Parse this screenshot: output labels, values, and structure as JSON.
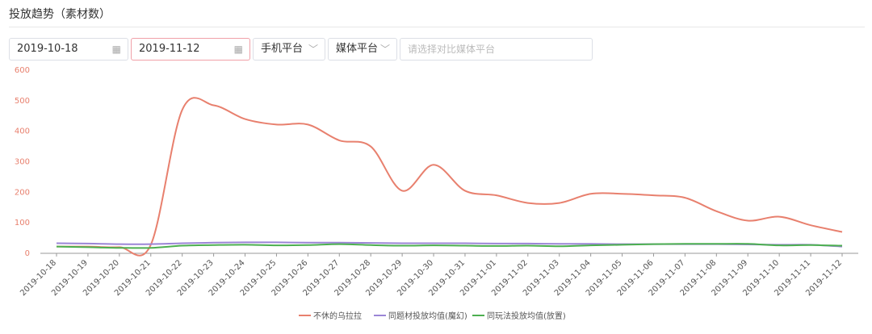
{
  "header": {
    "title": "投放趋势（素材数）"
  },
  "filters": {
    "start_date": "2019-10-18",
    "end_date": "2019-11-12",
    "platform": "手机平台",
    "media": "媒体平台",
    "compare_placeholder": "请选择对比媒体平台"
  },
  "chart_data": {
    "type": "line",
    "categories": [
      "2019-10-18",
      "2019-10-19",
      "2019-10-20",
      "2019-10-21",
      "2019-10-22",
      "2019-10-23",
      "2019-10-24",
      "2019-10-25",
      "2019-10-26",
      "2019-10-27",
      "2019-10-28",
      "2019-10-29",
      "2019-10-30",
      "2019-10-31",
      "2019-11-01",
      "2019-11-02",
      "2019-11-03",
      "2019-11-04",
      "2019-11-05",
      "2019-11-06",
      "2019-11-07",
      "2019-11-08",
      "2019-11-09",
      "2019-11-10",
      "2019-11-11",
      "2019-11-12"
    ],
    "series": [
      {
        "name": "不休的乌拉拉",
        "color": "#e8806e",
        "values": [
          22,
          22,
          20,
          28,
          470,
          485,
          440,
          422,
          422,
          370,
          350,
          205,
          290,
          205,
          190,
          165,
          165,
          195,
          195,
          190,
          182,
          138,
          107,
          120,
          92,
          70
        ]
      },
      {
        "name": "同题材投放均值(魔幻)",
        "color": "#9b85d6",
        "values": [
          33,
          32,
          30,
          30,
          33,
          35,
          36,
          36,
          35,
          35,
          34,
          33,
          33,
          33,
          32,
          32,
          31,
          31,
          30,
          30,
          30,
          30,
          29,
          28,
          28,
          22
        ]
      },
      {
        "name": "同玩法投放均值(放置)",
        "color": "#4caf50",
        "values": [
          22,
          20,
          18,
          18,
          25,
          27,
          28,
          26,
          27,
          30,
          27,
          25,
          26,
          25,
          24,
          25,
          23,
          26,
          28,
          30,
          31,
          31,
          31,
          26,
          27,
          25
        ]
      }
    ],
    "ylim": [
      0,
      600
    ],
    "yticks": [
      0,
      100,
      200,
      300,
      400,
      500,
      600
    ]
  }
}
